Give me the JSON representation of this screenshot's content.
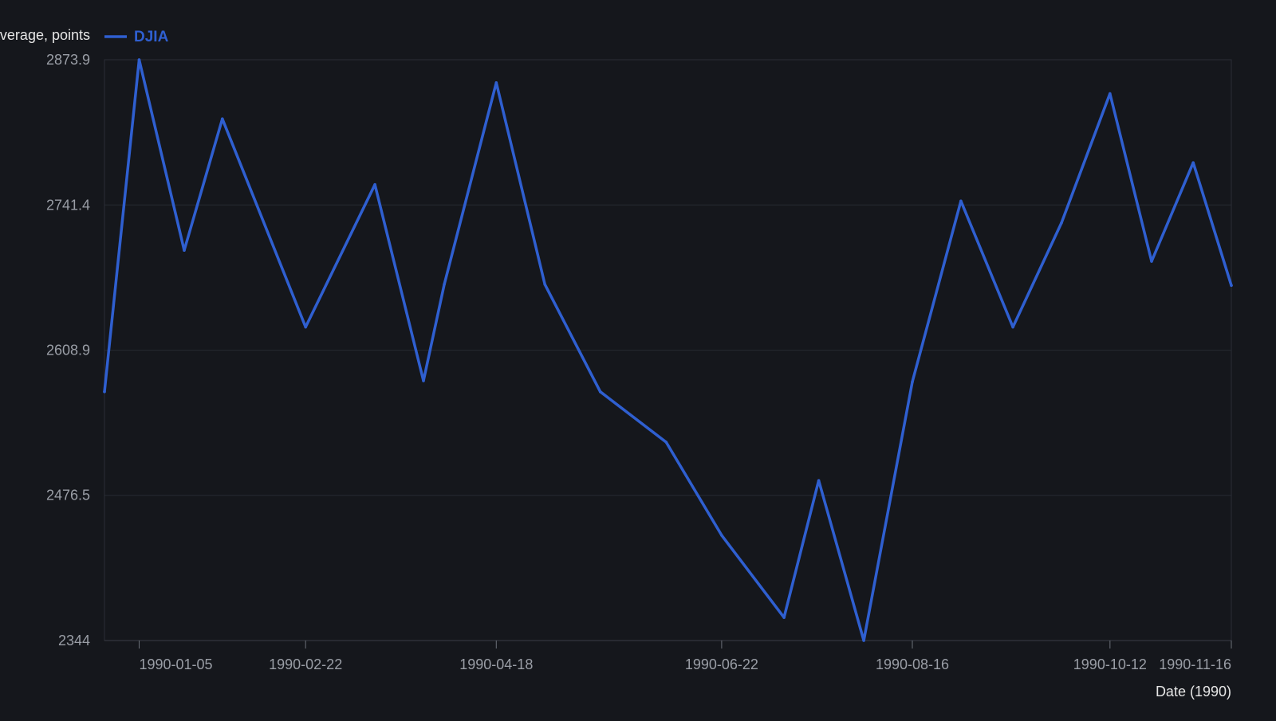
{
  "chart_data": {
    "type": "line",
    "ylabel": "Dow Jones Industrial Average, points",
    "xlabel": "Date (1990)",
    "ylim": [
      2344,
      2873.9
    ],
    "y_ticks": [
      "2873.9",
      "2741.4",
      "2608.9",
      "2476.5",
      "2344"
    ],
    "x_ticks": [
      {
        "date": "1990-01-05",
        "label": "1990-01-05"
      },
      {
        "date": "1990-02-22",
        "label": "1990-02-22"
      },
      {
        "date": "1990-04-18",
        "label": "1990-04-18"
      },
      {
        "date": "1990-06-22",
        "label": "1990-06-22"
      },
      {
        "date": "1990-08-16",
        "label": "1990-08-16"
      },
      {
        "date": "1990-10-12",
        "label": "1990-10-12"
      },
      {
        "date": "1990-11-16",
        "label": "1990-11-16"
      }
    ],
    "xlim": [
      "1989-12-26",
      "1990-11-16"
    ],
    "grid": true,
    "legend_position": "top-left",
    "series": [
      {
        "name": "DJIA",
        "color": "#2f5fd0",
        "points": [
          {
            "x": "1989-12-26",
            "y": 2571
          },
          {
            "x": "1990-01-05",
            "y": 2873.9
          },
          {
            "x": "1990-01-18",
            "y": 2700
          },
          {
            "x": "1990-01-29",
            "y": 2820
          },
          {
            "x": "1990-02-22",
            "y": 2630
          },
          {
            "x": "1990-03-14",
            "y": 2760
          },
          {
            "x": "1990-03-28",
            "y": 2581
          },
          {
            "x": "1990-04-03",
            "y": 2669
          },
          {
            "x": "1990-04-18",
            "y": 2853
          },
          {
            "x": "1990-05-02",
            "y": 2669
          },
          {
            "x": "1990-05-18",
            "y": 2571
          },
          {
            "x": "1990-06-06",
            "y": 2525
          },
          {
            "x": "1990-06-22",
            "y": 2440
          },
          {
            "x": "1990-07-10",
            "y": 2365
          },
          {
            "x": "1990-07-20",
            "y": 2490
          },
          {
            "x": "1990-08-02",
            "y": 2344
          },
          {
            "x": "1990-08-16",
            "y": 2580
          },
          {
            "x": "1990-08-30",
            "y": 2745
          },
          {
            "x": "1990-09-14",
            "y": 2630
          },
          {
            "x": "1990-09-28",
            "y": 2725
          },
          {
            "x": "1990-10-12",
            "y": 2843
          },
          {
            "x": "1990-10-24",
            "y": 2690
          },
          {
            "x": "1990-11-05",
            "y": 2780
          },
          {
            "x": "1990-11-16",
            "y": 2668
          }
        ]
      }
    ]
  }
}
